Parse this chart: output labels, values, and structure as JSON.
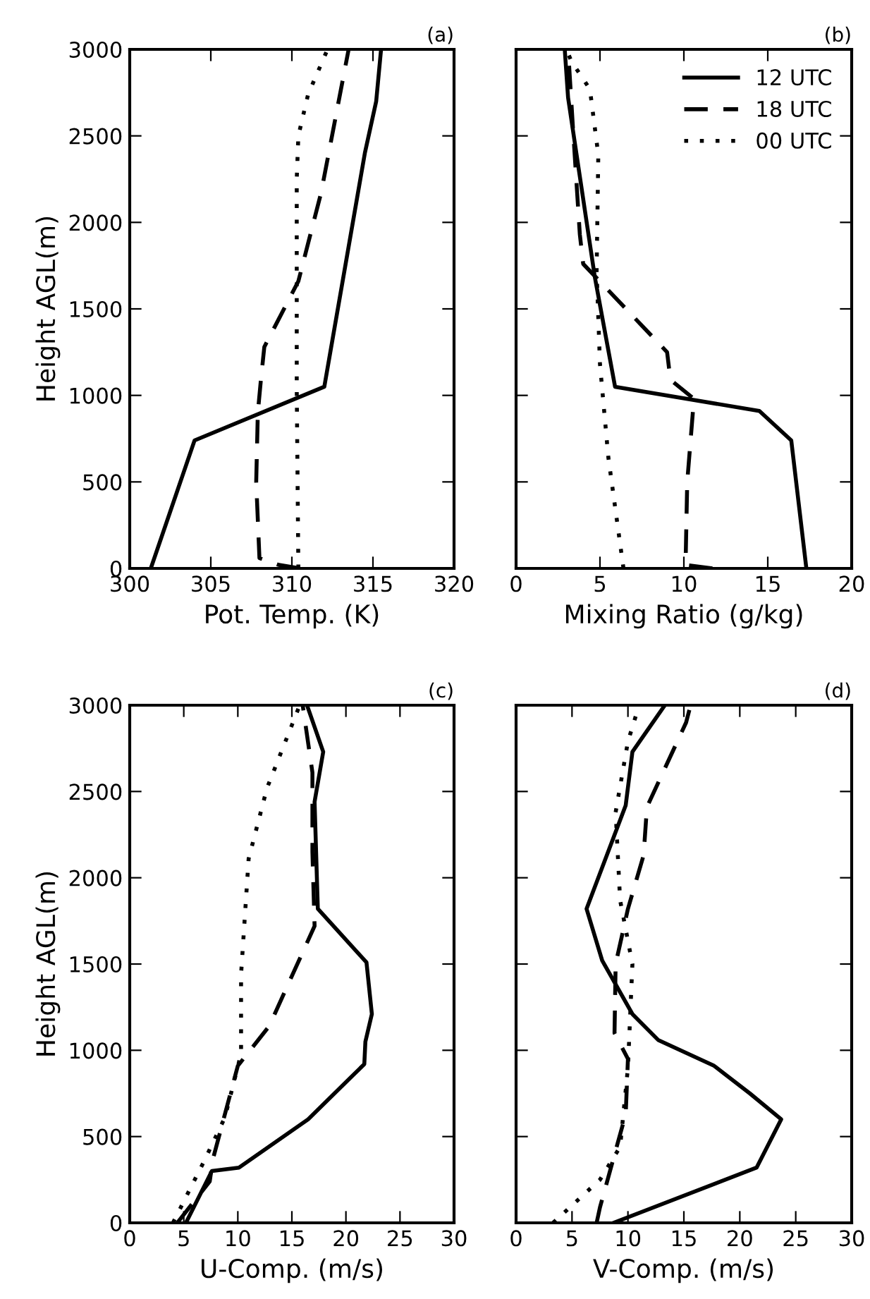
{
  "chart_data": [
    {
      "type": "line",
      "title": "(a)",
      "xlabel": "Pot. Temp. (K)",
      "ylabel": "Height AGL(m)",
      "xlim": [
        300,
        320
      ],
      "xticks": [
        300,
        305,
        310,
        315,
        320
      ],
      "ylim": [
        0,
        3000
      ],
      "yticks": [
        0,
        500,
        1000,
        1500,
        2000,
        2500,
        3000
      ],
      "grid": false,
      "legend": false,
      "series": [
        {
          "color": "#000000",
          "line_style": "solid",
          "x": [
            301.3,
            304.0,
            312.0,
            314.5,
            315.2,
            315.5
          ],
          "values": [
            0,
            740,
            1050,
            2400,
            2700,
            3000
          ]
        },
        {
          "color": "#000000",
          "line_style": "dashed",
          "x": [
            310.5,
            309.2,
            308.0,
            307.8,
            307.9,
            308.1,
            308.3,
            310.4,
            311.8,
            313.5
          ],
          "values": [
            0,
            20,
            60,
            500,
            900,
            1100,
            1280,
            1660,
            2170,
            3000
          ]
        },
        {
          "color": "#000000",
          "line_style": "dotted",
          "x": [
            310.4,
            310.3,
            310.3,
            310.4,
            311.0,
            312.2
          ],
          "values": [
            0,
            1040,
            2250,
            2500,
            2740,
            3000
          ]
        }
      ]
    },
    {
      "type": "line",
      "title": "(b)",
      "xlabel": "Mixing Ratio (g/kg)",
      "xlim": [
        0,
        20
      ],
      "xticks": [
        0,
        5,
        10,
        15,
        20
      ],
      "ylim": [
        0,
        3000
      ],
      "yticks": [
        0,
        500,
        1000,
        1500,
        2000,
        2500,
        3000
      ],
      "tick_labels": "x",
      "grid": false,
      "legend": "top right",
      "series": [
        {
          "name": "12 UTC",
          "color": "#000000",
          "line_style": "solid",
          "x": [
            17.3,
            16.4,
            14.5,
            5.9,
            4.7,
            3.1,
            2.9
          ],
          "values": [
            0,
            740,
            910,
            1050,
            1680,
            2720,
            3000
          ]
        },
        {
          "name": "18 UTC",
          "color": "#000000",
          "line_style": "dashed",
          "x": [
            11.7,
            10.1,
            10.2,
            10.6,
            9.2,
            9.0,
            4.0,
            3.8,
            3.4,
            3.1
          ],
          "values": [
            0,
            20,
            500,
            980,
            1090,
            1250,
            1760,
            1930,
            2530,
            3000
          ]
        },
        {
          "name": "00 UTC",
          "color": "#000000",
          "line_style": "dotted",
          "x": [
            6.4,
            5.5,
            5.0,
            4.8,
            4.9,
            4.4,
            3.3,
            3.0
          ],
          "values": [
            0,
            640,
            1180,
            1720,
            2390,
            2770,
            2930,
            3000
          ]
        }
      ]
    },
    {
      "type": "line",
      "title": "(c)",
      "xlabel": "U-Comp. (m/s)",
      "ylabel": "Height AGL(m)",
      "xlim": [
        0,
        30
      ],
      "xticks": [
        0,
        5,
        10,
        15,
        20,
        25,
        30
      ],
      "ylim": [
        0,
        3000
      ],
      "yticks": [
        0,
        500,
        1000,
        1500,
        2000,
        2500,
        3000
      ],
      "grid": false,
      "legend": false,
      "series": [
        {
          "color": "#000000",
          "line_style": "solid",
          "x": [
            5.2,
            7.6,
            10.1,
            16.5,
            21.7,
            21.8,
            22.4,
            21.9,
            17.4,
            17.1,
            17.9,
            16.4
          ],
          "values": [
            0,
            300,
            320,
            600,
            920,
            1050,
            1210,
            1510,
            1820,
            2440,
            2730,
            3000
          ]
        },
        {
          "color": "#000000",
          "line_style": "dashed",
          "x": [
            4.4,
            7.4,
            7.7,
            10.0,
            12.9,
            17.1,
            16.9,
            16.9,
            16.0
          ],
          "values": [
            0,
            240,
            370,
            910,
            1140,
            1720,
            2150,
            2610,
            3000
          ]
        },
        {
          "color": "#000000",
          "line_style": "dotted",
          "x": [
            4.0,
            6.9,
            8.8,
            10.3,
            10.3,
            11.0,
            12.7,
            15.6
          ],
          "values": [
            0,
            360,
            610,
            980,
            1440,
            2110,
            2520,
            2980
          ]
        }
      ]
    },
    {
      "type": "line",
      "title": "(d)",
      "xlabel": "V-Comp. (m/s)",
      "xlim": [
        0,
        30
      ],
      "xticks": [
        0,
        5,
        10,
        15,
        20,
        25,
        30
      ],
      "ylim": [
        0,
        3000
      ],
      "yticks": [
        0,
        500,
        1000,
        1500,
        2000,
        2500,
        3000
      ],
      "tick_labels": "x",
      "grid": false,
      "legend": false,
      "series": [
        {
          "color": "#000000",
          "line_style": "solid",
          "x": [
            8.7,
            21.5,
            23.7,
            20.9,
            17.7,
            12.7,
            10.4,
            7.7,
            6.3,
            9.8,
            10.4,
            13.3
          ],
          "values": [
            0,
            320,
            600,
            750,
            910,
            1060,
            1210,
            1520,
            1820,
            2420,
            2730,
            3000
          ]
        },
        {
          "color": "#000000",
          "line_style": "dashed",
          "x": [
            7.2,
            7.5,
            9.8,
            10.0,
            8.8,
            8.9,
            10.0,
            11.4,
            11.7,
            15.2,
            15.6
          ],
          "values": [
            0,
            90,
            630,
            950,
            1100,
            1500,
            1820,
            2130,
            2410,
            2900,
            3000
          ]
        },
        {
          "color": "#000000",
          "line_style": "dotted",
          "x": [
            3.3,
            7.5,
            9.3,
            10.0,
            10.4,
            9.3,
            8.9,
            10.0,
            11.0
          ],
          "values": [
            0,
            250,
            440,
            900,
            1500,
            1870,
            2380,
            2790,
            3000
          ]
        }
      ]
    }
  ]
}
